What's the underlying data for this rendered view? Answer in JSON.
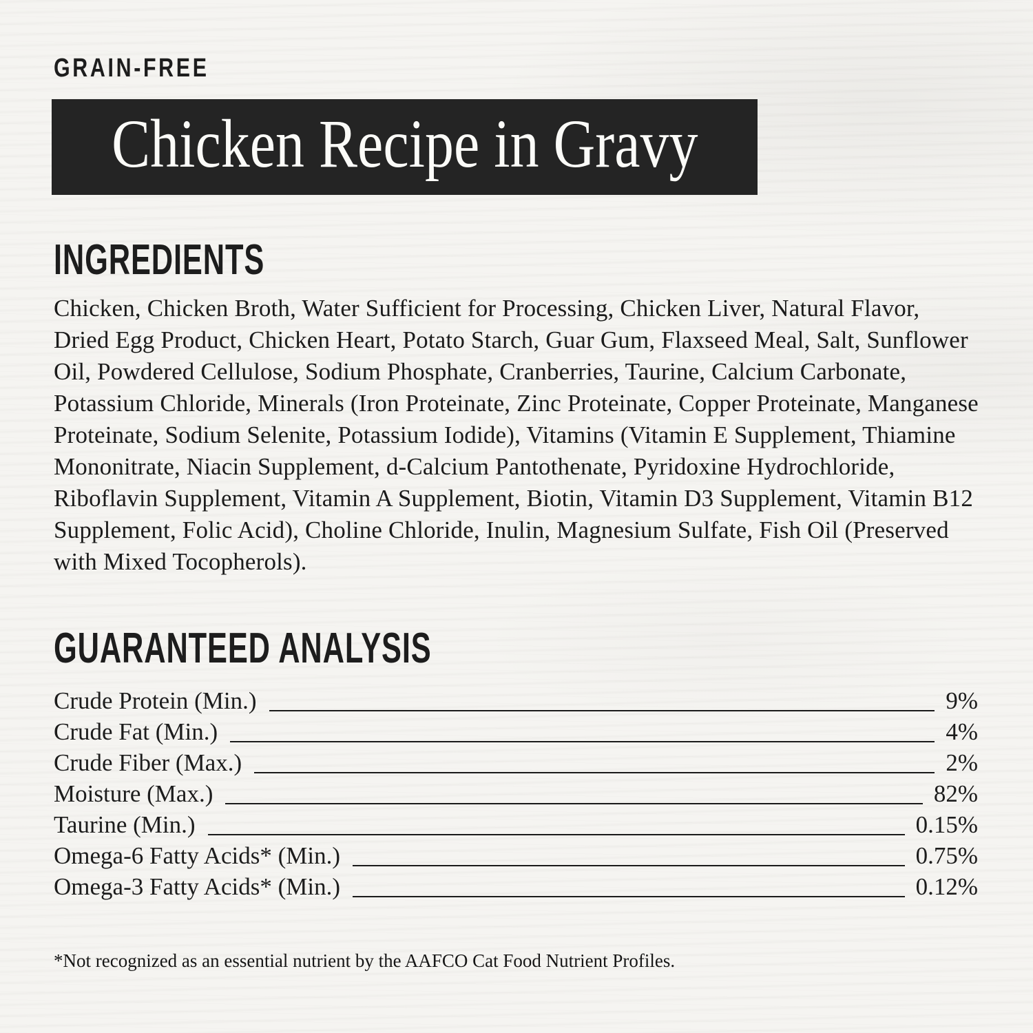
{
  "page": {
    "badge": "GRAIN-FREE",
    "title": "Chicken Recipe in Gravy"
  },
  "ingredients": {
    "heading": "INGREDIENTS",
    "text": "Chicken, Chicken Broth, Water Sufficient for Processing, Chicken Liver, Natural Flavor, Dried Egg Product, Chicken Heart, Potato Starch, Guar Gum, Flaxseed Meal, Salt, Sunflower Oil, Powdered Cellulose, Sodium Phosphate, Cranberries, Taurine, Calcium Carbonate, Potassium Chloride, Minerals (Iron Proteinate, Zinc Proteinate, Copper Proteinate, Manganese Proteinate, Sodium Selenite, Potassium Iodide), Vitamins (Vitamin E Supplement, Thiamine Mononitrate, Niacin Supplement, d-Calcium Pantothenate, Pyridoxine Hydrochloride, Riboflavin Supplement, Vitamin A Supplement, Biotin, Vitamin D3 Supplement, Vitamin B12 Supplement, Folic Acid), Choline Chloride, Inulin, Magnesium Sulfate, Fish Oil (Preserved with Mixed Tocopherols)."
  },
  "analysis": {
    "heading": "GUARANTEED ANALYSIS",
    "rows": [
      {
        "label": "Crude Protein (Min.)",
        "value": "9%"
      },
      {
        "label": "Crude Fat (Min.)",
        "value": "4%"
      },
      {
        "label": "Crude Fiber (Max.)",
        "value": "2%"
      },
      {
        "label": "Moisture (Max.)",
        "value": "82%"
      },
      {
        "label": "Taurine (Min.)",
        "value": "0.15%"
      },
      {
        "label": "Omega-6 Fatty Acids* (Min.)",
        "value": "0.75%"
      },
      {
        "label": "Omega-3 Fatty Acids* (Min.)",
        "value": "0.12%"
      }
    ]
  },
  "footnote": "*Not recognized as an essential nutrient by the AAFCO Cat Food Nutrient Profiles.",
  "colors": {
    "background": "#f5f4f1",
    "ink": "#1c1c1c",
    "banner_background": "#242424",
    "banner_text": "#fbfbf8"
  }
}
